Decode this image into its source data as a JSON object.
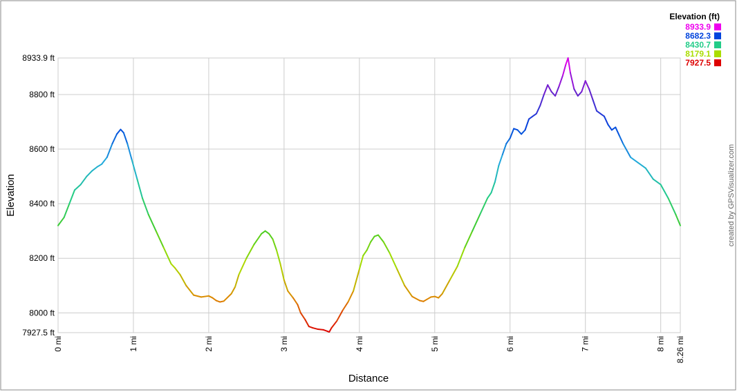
{
  "chart_data": {
    "type": "line",
    "title": "",
    "xlabel": "Distance",
    "ylabel": "Elevation",
    "x_unit": "mi",
    "y_unit": "ft",
    "xlim": [
      0,
      8.26
    ],
    "ylim": [
      7927.5,
      8933.9
    ],
    "grid": true,
    "x_ticks": [
      {
        "value": 0,
        "label": "0 mi"
      },
      {
        "value": 1,
        "label": "1 mi"
      },
      {
        "value": 2,
        "label": "2 mi"
      },
      {
        "value": 3,
        "label": "3 mi"
      },
      {
        "value": 4,
        "label": "4 mi"
      },
      {
        "value": 5,
        "label": "5 mi"
      },
      {
        "value": 6,
        "label": "6 mi"
      },
      {
        "value": 7,
        "label": "7 mi"
      },
      {
        "value": 8,
        "label": "8 mi"
      },
      {
        "value": 8.26,
        "label": "8.26 mi"
      }
    ],
    "y_ticks": [
      {
        "value": 7927.5,
        "label": "7927.5 ft"
      },
      {
        "value": 8000,
        "label": "8000 ft"
      },
      {
        "value": 8200,
        "label": "8200 ft"
      },
      {
        "value": 8400,
        "label": "8400 ft"
      },
      {
        "value": 8600,
        "label": "8600 ft"
      },
      {
        "value": 8800,
        "label": "8800 ft"
      },
      {
        "value": 8933.9,
        "label": "8933.9 ft"
      }
    ],
    "legend": {
      "title": "Elevation (ft)",
      "position": "top-right",
      "items": [
        {
          "label": "8933.9",
          "color": "#ee00ee"
        },
        {
          "label": "8682.3",
          "color": "#0044dd"
        },
        {
          "label": "8430.7",
          "color": "#22cc88"
        },
        {
          "label": "8179.1",
          "color": "#aadd00"
        },
        {
          "label": "7927.5",
          "color": "#dd0000"
        }
      ]
    },
    "color_scale": [
      {
        "value": 7927.5,
        "color": "#dd0000"
      },
      {
        "value": 8053.3,
        "color": "#dd8800"
      },
      {
        "value": 8179.1,
        "color": "#aadd00"
      },
      {
        "value": 8304.9,
        "color": "#44cc22"
      },
      {
        "value": 8430.7,
        "color": "#22cc88"
      },
      {
        "value": 8556.5,
        "color": "#22aadd"
      },
      {
        "value": 8682.3,
        "color": "#0044dd"
      },
      {
        "value": 8808.1,
        "color": "#6622cc"
      },
      {
        "value": 8933.9,
        "color": "#ee00ee"
      }
    ],
    "series": [
      {
        "x": [
          0,
          0.08,
          0.15,
          0.22,
          0.3,
          0.38,
          0.45,
          0.52,
          0.58,
          0.65,
          0.72,
          0.78,
          0.83,
          0.87,
          0.92,
          0.98,
          1.05,
          1.12,
          1.2,
          1.3,
          1.4,
          1.5,
          1.55,
          1.62,
          1.7,
          1.8,
          1.9,
          2.0,
          2.05,
          2.1,
          2.15,
          2.2,
          2.3,
          2.35,
          2.4,
          2.5,
          2.6,
          2.7,
          2.75,
          2.8,
          2.85,
          2.9,
          2.95,
          3.0,
          3.05,
          3.12,
          3.18,
          3.22,
          3.28,
          3.33,
          3.38,
          3.45,
          3.52,
          3.58,
          3.6,
          3.63,
          3.7,
          3.78,
          3.85,
          3.92,
          4.0,
          4.05,
          4.1,
          4.15,
          4.2,
          4.25,
          4.32,
          4.4,
          4.5,
          4.6,
          4.7,
          4.8,
          4.85,
          4.9,
          4.95,
          5.0,
          5.05,
          5.1,
          5.2,
          5.3,
          5.4,
          5.5,
          5.6,
          5.7,
          5.75,
          5.8,
          5.85,
          5.9,
          5.95,
          6.0,
          6.05,
          6.1,
          6.15,
          6.2,
          6.25,
          6.3,
          6.35,
          6.4,
          6.45,
          6.5,
          6.55,
          6.6,
          6.65,
          6.7,
          6.74,
          6.77,
          6.8,
          6.85,
          6.9,
          6.95,
          7.0,
          7.05,
          7.1,
          7.15,
          7.2,
          7.25,
          7.3,
          7.35,
          7.4,
          7.45,
          7.5,
          7.6,
          7.7,
          7.8,
          7.9,
          8.0,
          8.1,
          8.2,
          8.26
        ],
        "y": [
          8320,
          8350,
          8400,
          8450,
          8470,
          8500,
          8520,
          8535,
          8545,
          8570,
          8620,
          8655,
          8672,
          8660,
          8620,
          8560,
          8490,
          8420,
          8360,
          8300,
          8240,
          8180,
          8165,
          8140,
          8100,
          8065,
          8058,
          8062,
          8055,
          8045,
          8040,
          8043,
          8070,
          8095,
          8140,
          8200,
          8250,
          8290,
          8300,
          8290,
          8270,
          8230,
          8180,
          8120,
          8080,
          8055,
          8030,
          8000,
          7975,
          7950,
          7945,
          7940,
          7938,
          7932,
          7930,
          7945,
          7970,
          8010,
          8040,
          8080,
          8160,
          8210,
          8230,
          8260,
          8280,
          8285,
          8260,
          8220,
          8160,
          8100,
          8060,
          8045,
          8042,
          8050,
          8058,
          8060,
          8055,
          8070,
          8120,
          8170,
          8240,
          8300,
          8360,
          8420,
          8440,
          8480,
          8540,
          8580,
          8620,
          8640,
          8675,
          8670,
          8655,
          8670,
          8710,
          8720,
          8730,
          8760,
          8800,
          8835,
          8810,
          8795,
          8830,
          8870,
          8910,
          8933.9,
          8880,
          8820,
          8795,
          8810,
          8850,
          8820,
          8780,
          8740,
          8730,
          8720,
          8690,
          8670,
          8680,
          8650,
          8620,
          8570,
          8550,
          8530,
          8490,
          8470,
          8420,
          8360,
          8320
        ]
      }
    ]
  },
  "credit": "created by GPSVisualizer.com"
}
